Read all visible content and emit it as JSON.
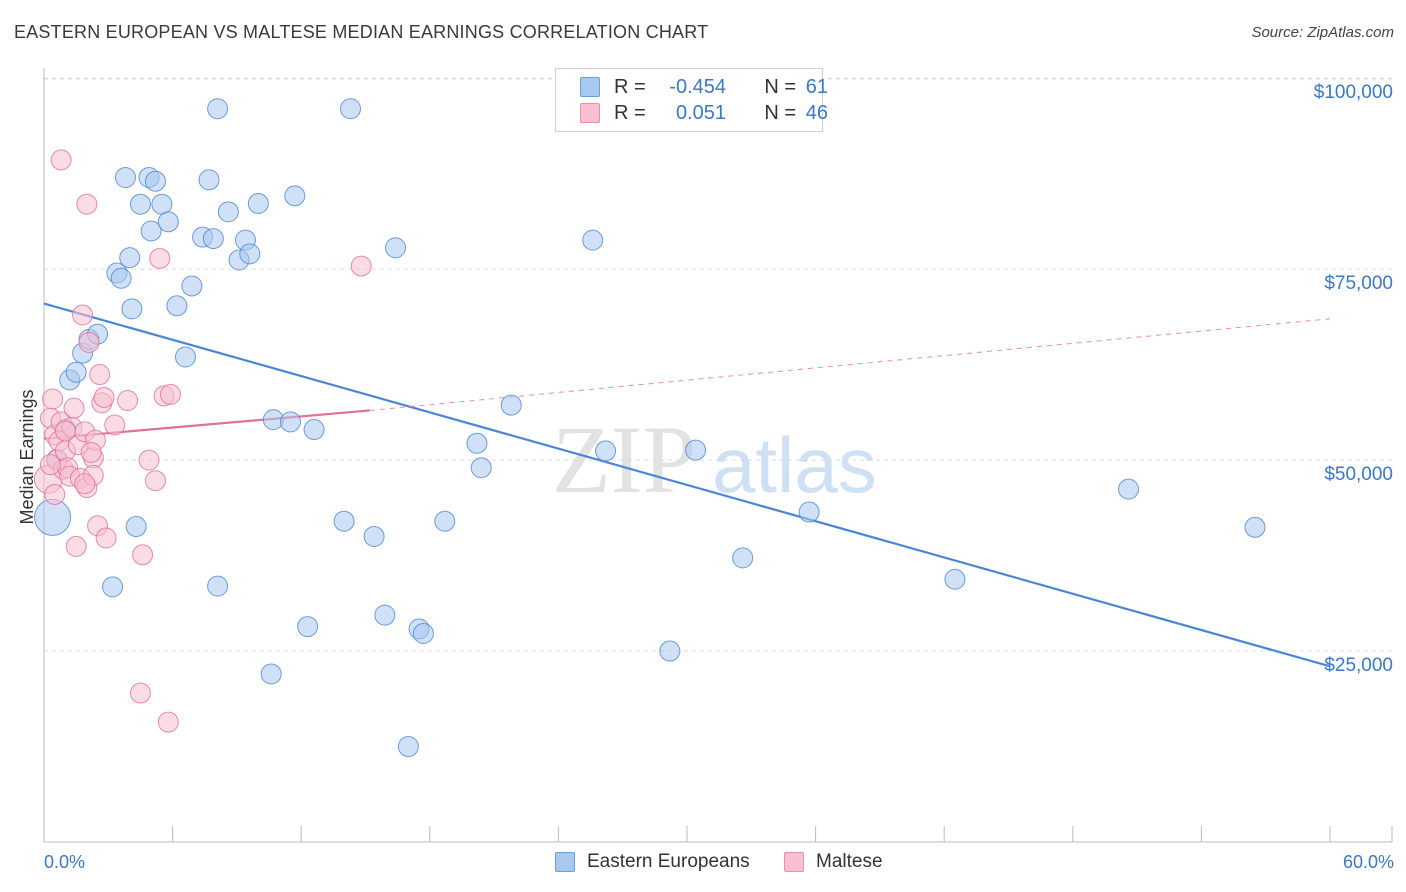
{
  "title": "EASTERN EUROPEAN VS MALTESE MEDIAN EARNINGS CORRELATION CHART",
  "source": "Source: ZipAtlas.com",
  "watermark": {
    "zip": "ZIP",
    "atlas": "atlas"
  },
  "legend": {
    "rows": [
      {
        "r_label": "R =",
        "r_value": "-0.454",
        "n_label": "N =",
        "n_value": "61",
        "color": "#a9c8f0",
        "border": "#6f9fd8"
      },
      {
        "r_label": "R =",
        "r_value": "0.051",
        "n_label": "N =",
        "n_value": "46",
        "color": "#f7bfd0",
        "border": "#e590ad"
      }
    ]
  },
  "bottom_legend": {
    "series1": "Eastern Europeans",
    "series2": "Maltese"
  },
  "x_axis": {
    "min_label": "0.0%",
    "max_label": "60.0%"
  },
  "chart_data": {
    "type": "scatter",
    "title": "EASTERN EUROPEAN VS MALTESE MEDIAN EARNINGS CORRELATION CHART",
    "xlabel": "",
    "ylabel": "Median Earnings",
    "xlim": [
      0,
      60
    ],
    "ylim": [
      0,
      105000
    ],
    "y_ticks": [
      {
        "value": 25000,
        "label": "$25,000"
      },
      {
        "value": 50000,
        "label": "$50,000"
      },
      {
        "value": 75000,
        "label": "$75,000"
      },
      {
        "value": 100000,
        "label": "$100,000"
      }
    ],
    "series": [
      {
        "name": "Eastern Europeans",
        "color": "#4a86d4",
        "fill": "#a9c8f0",
        "trend": {
          "x": [
            0,
            60
          ],
          "y": [
            70500,
            23000
          ],
          "dashed": false
        },
        "points": [
          [
            0.4,
            42500,
            18
          ],
          [
            0.6,
            50000,
            10
          ],
          [
            1.2,
            60500,
            10
          ],
          [
            1.5,
            61500,
            10
          ],
          [
            1.8,
            64000,
            10
          ],
          [
            2.1,
            65800,
            10
          ],
          [
            2.5,
            66500,
            10
          ],
          [
            1.0,
            54000,
            10
          ],
          [
            3.4,
            74500,
            10
          ],
          [
            3.6,
            73800,
            10
          ],
          [
            3.8,
            87000,
            10
          ],
          [
            4.0,
            76500,
            10
          ],
          [
            4.1,
            69800,
            10
          ],
          [
            4.5,
            83500,
            10
          ],
          [
            4.9,
            87000,
            10
          ],
          [
            5.0,
            80000,
            10
          ],
          [
            5.2,
            86500,
            10
          ],
          [
            5.5,
            83500,
            10
          ],
          [
            5.8,
            81200,
            10
          ],
          [
            6.2,
            70200,
            10
          ],
          [
            6.6,
            63500,
            10
          ],
          [
            6.9,
            72800,
            10
          ],
          [
            7.4,
            79200,
            10
          ],
          [
            7.7,
            86700,
            10
          ],
          [
            7.9,
            79000,
            10
          ],
          [
            8.1,
            96000,
            10
          ],
          [
            8.6,
            82500,
            10
          ],
          [
            9.1,
            76200,
            10
          ],
          [
            9.4,
            78800,
            10
          ],
          [
            9.6,
            77000,
            10
          ],
          [
            10.0,
            83600,
            10
          ],
          [
            11.7,
            84600,
            10
          ],
          [
            14.3,
            96000,
            10
          ],
          [
            16.4,
            77800,
            10
          ],
          [
            10.7,
            55300,
            10
          ],
          [
            11.5,
            55000,
            10
          ],
          [
            12.6,
            54000,
            10
          ],
          [
            14.0,
            42000,
            10
          ],
          [
            15.4,
            40000,
            10
          ],
          [
            18.7,
            42000,
            10
          ],
          [
            20.2,
            52200,
            10
          ],
          [
            20.4,
            49000,
            10
          ],
          [
            21.8,
            57200,
            10
          ],
          [
            25.6,
            78800,
            10
          ],
          [
            26.2,
            51200,
            10
          ],
          [
            30.4,
            51300,
            10
          ],
          [
            32.6,
            37200,
            10
          ],
          [
            35.7,
            43200,
            10
          ],
          [
            42.5,
            34400,
            10
          ],
          [
            50.6,
            46200,
            10
          ],
          [
            56.5,
            41200,
            10
          ],
          [
            3.2,
            33400,
            10
          ],
          [
            4.3,
            41300,
            10
          ],
          [
            12.3,
            28200,
            10
          ],
          [
            15.9,
            29700,
            10
          ],
          [
            17.5,
            27900,
            10
          ],
          [
            17.7,
            27300,
            10
          ],
          [
            29.2,
            25000,
            10
          ],
          [
            10.6,
            22000,
            10
          ],
          [
            17.0,
            12500,
            10
          ],
          [
            8.1,
            33500,
            10
          ]
        ]
      },
      {
        "name": "Maltese",
        "color": "#e0709a",
        "fill": "#f7bfd0",
        "trend": {
          "x": [
            0,
            15.2
          ],
          "y": [
            52800,
            56500
          ],
          "dashed": false
        },
        "trend_ext": {
          "x": [
            15.2,
            60
          ],
          "y": [
            56500,
            68500
          ],
          "dashed": true
        },
        "points": [
          [
            0.2,
            47500,
            14
          ],
          [
            0.3,
            55500,
            10
          ],
          [
            0.4,
            58000,
            10
          ],
          [
            0.5,
            53300,
            10
          ],
          [
            0.6,
            50100,
            10
          ],
          [
            0.7,
            52500,
            10
          ],
          [
            0.8,
            55000,
            10
          ],
          [
            0.9,
            48800,
            10
          ],
          [
            1.0,
            51200,
            10
          ],
          [
            1.1,
            49000,
            10
          ],
          [
            1.2,
            47900,
            10
          ],
          [
            1.3,
            54300,
            10
          ],
          [
            1.4,
            56800,
            10
          ],
          [
            1.6,
            52000,
            10
          ],
          [
            1.7,
            47600,
            10
          ],
          [
            1.8,
            69000,
            10
          ],
          [
            1.9,
            53700,
            10
          ],
          [
            2.0,
            46400,
            10
          ],
          [
            2.1,
            65400,
            10
          ],
          [
            2.3,
            50300,
            10
          ],
          [
            2.4,
            52600,
            10
          ],
          [
            2.5,
            41400,
            10
          ],
          [
            2.6,
            61200,
            10
          ],
          [
            2.7,
            57500,
            10
          ],
          [
            2.8,
            58200,
            10
          ],
          [
            1.5,
            38700,
            10
          ],
          [
            2.9,
            39800,
            10
          ],
          [
            3.3,
            54600,
            10
          ],
          [
            3.9,
            57800,
            10
          ],
          [
            4.6,
            37600,
            10
          ],
          [
            4.9,
            50000,
            10
          ],
          [
            5.2,
            47300,
            10
          ],
          [
            5.6,
            58400,
            10
          ],
          [
            5.9,
            58600,
            10
          ],
          [
            5.4,
            76400,
            10
          ],
          [
            14.8,
            75400,
            10
          ],
          [
            0.8,
            89300,
            10
          ],
          [
            2.0,
            83500,
            10
          ],
          [
            4.5,
            19500,
            10
          ],
          [
            5.8,
            15700,
            10
          ],
          [
            2.3,
            48000,
            10
          ],
          [
            0.5,
            45500,
            10
          ],
          [
            1.0,
            53800,
            10
          ],
          [
            0.3,
            49400,
            10
          ],
          [
            1.9,
            46900,
            10
          ],
          [
            2.2,
            51000,
            10
          ]
        ]
      }
    ]
  }
}
